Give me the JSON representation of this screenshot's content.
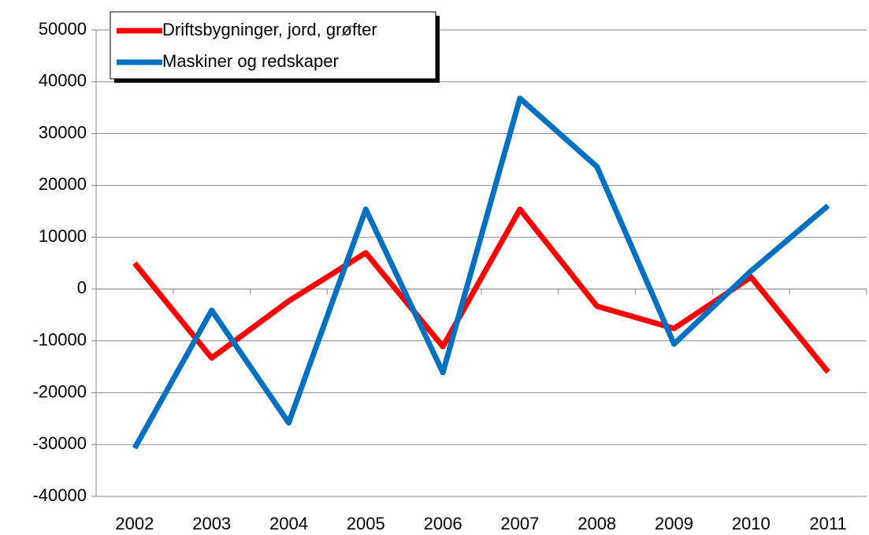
{
  "chart_data": {
    "type": "line",
    "categories": [
      "2002",
      "2003",
      "2004",
      "2005",
      "2006",
      "2007",
      "2008",
      "2009",
      "2010",
      "2011"
    ],
    "series": [
      {
        "name": "Driftsbygninger, jord, grøfter",
        "color": "#ff0000",
        "values": [
          5000,
          -13300,
          -2300,
          7000,
          -11100,
          15400,
          -3300,
          -7600,
          2300,
          -16000
        ]
      },
      {
        "name": "Maskiner og redskaper",
        "color": "#0070c0",
        "values": [
          -30700,
          -4100,
          -25800,
          15400,
          -16100,
          36800,
          23600,
          -10600,
          3500,
          16100
        ]
      }
    ],
    "ylim": [
      -40000,
      50000
    ],
    "yticks": [
      -40000,
      -30000,
      -20000,
      -10000,
      0,
      10000,
      20000,
      30000,
      40000,
      50000
    ],
    "grid": true,
    "legend": "top-left"
  }
}
